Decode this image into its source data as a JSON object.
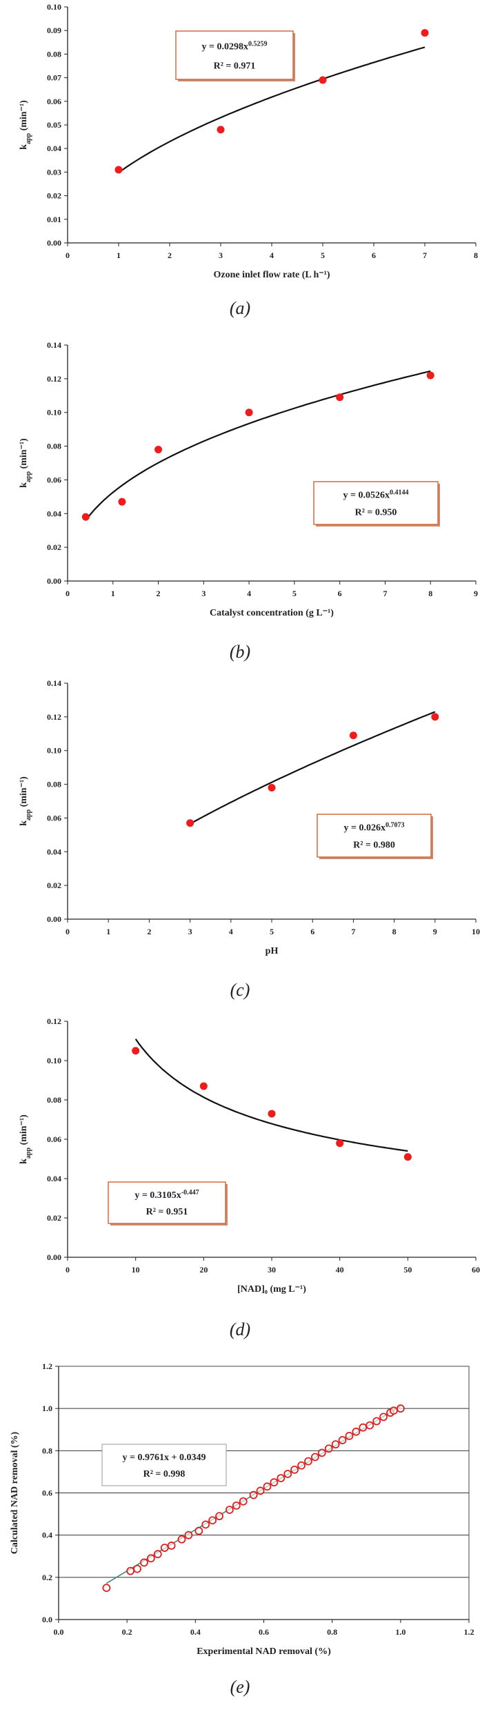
{
  "chart_data": [
    {
      "type": "scatter",
      "caption": "(a)",
      "xlabel": "Ozone inlet flow rate (L h⁻¹)",
      "ylabel": "k",
      "ylabel_sub": "app",
      "ylabel_unit": " (min⁻¹)",
      "xlim": [
        0,
        8
      ],
      "xstep": 1,
      "xdec": 0,
      "ylim": [
        0,
        0.1
      ],
      "ystep": 0.01,
      "ydec": 2,
      "grid": false,
      "box": false,
      "fit": {
        "kind": "power",
        "a": 0.0298,
        "b": 0.5259,
        "x0": 1,
        "x1": 7
      },
      "equation": "y = 0.0298x",
      "equation_exp": "0.5259",
      "r2": "R² = 0.971",
      "eq_box": "orange",
      "series": [
        {
          "x": [
            1,
            3,
            5,
            7
          ],
          "y": [
            0.031,
            0.048,
            0.069,
            0.089
          ]
        }
      ]
    },
    {
      "type": "scatter",
      "caption": "(b)",
      "xlabel": "Catalyst concentration (g L⁻¹)",
      "ylabel": "k",
      "ylabel_sub": "app",
      "ylabel_unit": " (min⁻¹)",
      "xlim": [
        0,
        9
      ],
      "xstep": 1,
      "xdec": 0,
      "ylim": [
        0,
        0.14
      ],
      "ystep": 0.02,
      "ydec": 2,
      "grid": false,
      "box": false,
      "fit": {
        "kind": "power",
        "a": 0.0526,
        "b": 0.4144,
        "x0": 0.4,
        "x1": 8
      },
      "equation": "y = 0.0526x",
      "equation_exp": "0.4144",
      "r2": "R² = 0.950",
      "eq_box": "orange",
      "series": [
        {
          "x": [
            0.4,
            1.2,
            2,
            4,
            6,
            8
          ],
          "y": [
            0.038,
            0.047,
            0.078,
            0.1,
            0.109,
            0.122
          ]
        }
      ]
    },
    {
      "type": "scatter",
      "caption": "(c)",
      "xlabel": "pH",
      "ylabel": "k",
      "ylabel_sub": "app",
      "ylabel_unit": " (min⁻¹)",
      "xlim": [
        0,
        10
      ],
      "xstep": 1,
      "xdec": 0,
      "ylim": [
        0,
        0.14
      ],
      "ystep": 0.02,
      "ydec": 2,
      "grid": false,
      "box": false,
      "fit": {
        "kind": "power",
        "a": 0.026,
        "b": 0.7073,
        "x0": 3,
        "x1": 9
      },
      "equation": "y = 0.026x",
      "equation_exp": "0.7073",
      "r2": "R² = 0.980",
      "eq_box": "orange",
      "series": [
        {
          "x": [
            3,
            5,
            7,
            9
          ],
          "y": [
            0.057,
            0.078,
            0.109,
            0.12
          ]
        }
      ]
    },
    {
      "type": "scatter",
      "caption": "(d)",
      "xlabel": "[NAD]₀ (mg L⁻¹)",
      "ylabel": "k",
      "ylabel_sub": "app",
      "ylabel_unit": " (min⁻¹)",
      "xlim": [
        0,
        60
      ],
      "xstep": 10,
      "xdec": 0,
      "ylim": [
        0,
        0.12
      ],
      "ystep": 0.02,
      "ydec": 2,
      "grid": false,
      "box": false,
      "fit": {
        "kind": "power",
        "a": 0.3105,
        "b": -0.447,
        "x0": 10,
        "x1": 50
      },
      "equation": "y = 0.3105x",
      "equation_exp": "-0.447",
      "r2": "R² = 0.951",
      "eq_box": "orange",
      "series": [
        {
          "x": [
            10,
            20,
            30,
            40,
            50
          ],
          "y": [
            0.105,
            0.087,
            0.073,
            0.058,
            0.051
          ]
        }
      ]
    },
    {
      "type": "scatter",
      "caption": "(e)",
      "xlabel": "Experimental NAD removal (%)",
      "ylabel": "Calculated NAD removal (%)",
      "ylabel_sub": "",
      "ylabel_unit": "",
      "xlim": [
        0,
        1.2
      ],
      "xstep": 0.2,
      "xdec": 1,
      "ylim": [
        0,
        1.2
      ],
      "ystep": 0.2,
      "ydec": 1,
      "grid": true,
      "box": true,
      "fit": {
        "kind": "linear",
        "a": 0.9761,
        "b": 0.0349,
        "x0": 0.14,
        "x1": 1.0
      },
      "equation": "y = 0.9761x + 0.0349",
      "equation_exp": "",
      "r2": "R² = 0.998",
      "eq_box": "gray",
      "hollow": true,
      "series": [
        {
          "x": [
            0.14,
            0.21,
            0.23,
            0.25,
            0.27,
            0.29,
            0.31,
            0.33,
            0.36,
            0.38,
            0.41,
            0.43,
            0.45,
            0.47,
            0.5,
            0.52,
            0.54,
            0.57,
            0.59,
            0.61,
            0.63,
            0.65,
            0.67,
            0.69,
            0.71,
            0.73,
            0.75,
            0.77,
            0.79,
            0.81,
            0.83,
            0.85,
            0.87,
            0.89,
            0.91,
            0.93,
            0.95,
            0.97,
            0.98,
            1.0
          ],
          "y": [
            0.15,
            0.23,
            0.24,
            0.27,
            0.29,
            0.31,
            0.34,
            0.35,
            0.38,
            0.4,
            0.42,
            0.45,
            0.47,
            0.49,
            0.52,
            0.54,
            0.56,
            0.59,
            0.61,
            0.63,
            0.65,
            0.67,
            0.69,
            0.71,
            0.73,
            0.75,
            0.77,
            0.79,
            0.81,
            0.83,
            0.85,
            0.87,
            0.89,
            0.91,
            0.92,
            0.94,
            0.96,
            0.98,
            0.99,
            1.0
          ]
        }
      ]
    }
  ]
}
